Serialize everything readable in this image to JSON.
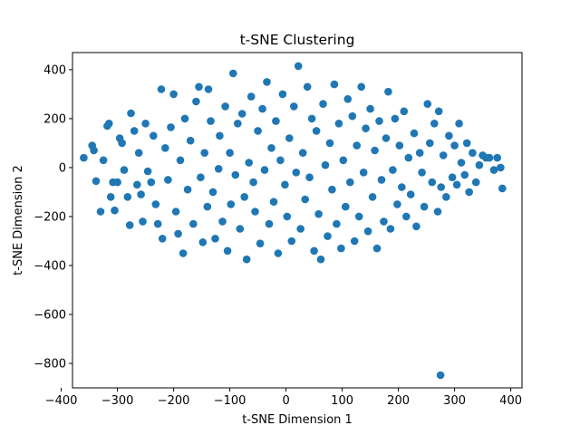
{
  "chart_data": {
    "type": "scatter",
    "title": "t-SNE Clustering",
    "xlabel": "t-SNE Dimension 1",
    "ylabel": "t-SNE Dimension 2",
    "xlim": [
      -380,
      420
    ],
    "ylim": [
      -900,
      470
    ],
    "xticks": [
      -400,
      -300,
      -200,
      -100,
      0,
      100,
      200,
      300,
      400
    ],
    "yticks": [
      -800,
      -600,
      -400,
      -200,
      0,
      200,
      400
    ],
    "grid": false,
    "legend": "none",
    "marker_color": "#1f77b4",
    "series": [
      {
        "points": [
          [
            -360,
            40
          ],
          [
            -345,
            90
          ],
          [
            -342,
            70
          ],
          [
            -338,
            -55
          ],
          [
            -330,
            -180
          ],
          [
            -325,
            30
          ],
          [
            -318,
            170
          ],
          [
            -315,
            180
          ],
          [
            -312,
            -120
          ],
          [
            -308,
            -60
          ],
          [
            -305,
            -175
          ],
          [
            -300,
            -60
          ],
          [
            -296,
            120
          ],
          [
            -292,
            100
          ],
          [
            -288,
            -10
          ],
          [
            -282,
            -120
          ],
          [
            -278,
            -235
          ],
          [
            -276,
            222
          ],
          [
            -270,
            150
          ],
          [
            -265,
            -70
          ],
          [
            -262,
            60
          ],
          [
            -258,
            -110
          ],
          [
            -255,
            -220
          ],
          [
            -250,
            180
          ],
          [
            -246,
            -15
          ],
          [
            -240,
            -60
          ],
          [
            -236,
            130
          ],
          [
            -232,
            -150
          ],
          [
            -228,
            -230
          ],
          [
            -222,
            320
          ],
          [
            -220,
            -290
          ],
          [
            -215,
            80
          ],
          [
            -210,
            -50
          ],
          [
            -205,
            165
          ],
          [
            -200,
            300
          ],
          [
            -196,
            -180
          ],
          [
            -192,
            -270
          ],
          [
            -188,
            30
          ],
          [
            -183,
            -350
          ],
          [
            -180,
            200
          ],
          [
            -175,
            -90
          ],
          [
            -170,
            110
          ],
          [
            -165,
            -230
          ],
          [
            -160,
            270
          ],
          [
            -155,
            330
          ],
          [
            -152,
            -40
          ],
          [
            -148,
            -305
          ],
          [
            -145,
            60
          ],
          [
            -140,
            -160
          ],
          [
            -138,
            320
          ],
          [
            -134,
            190
          ],
          [
            -130,
            -100
          ],
          [
            -126,
            -290
          ],
          [
            -120,
            -5
          ],
          [
            -118,
            130
          ],
          [
            -113,
            -220
          ],
          [
            -108,
            250
          ],
          [
            -104,
            -340
          ],
          [
            -100,
            60
          ],
          [
            -98,
            -150
          ],
          [
            -94,
            385
          ],
          [
            -90,
            -30
          ],
          [
            -86,
            180
          ],
          [
            -82,
            -250
          ],
          [
            -78,
            220
          ],
          [
            -74,
            -120
          ],
          [
            -70,
            -375
          ],
          [
            -66,
            20
          ],
          [
            -62,
            290
          ],
          [
            -58,
            -60
          ],
          [
            -55,
            -180
          ],
          [
            -50,
            150
          ],
          [
            -46,
            -310
          ],
          [
            -42,
            240
          ],
          [
            -38,
            -10
          ],
          [
            -34,
            350
          ],
          [
            -30,
            -230
          ],
          [
            -26,
            80
          ],
          [
            -22,
            -140
          ],
          [
            -18,
            190
          ],
          [
            -14,
            -350
          ],
          [
            -10,
            30
          ],
          [
            -6,
            300
          ],
          [
            -2,
            -70
          ],
          [
            2,
            -200
          ],
          [
            6,
            120
          ],
          [
            10,
            -300
          ],
          [
            14,
            250
          ],
          [
            18,
            -20
          ],
          [
            22,
            415
          ],
          [
            26,
            -250
          ],
          [
            30,
            60
          ],
          [
            34,
            -130
          ],
          [
            38,
            330
          ],
          [
            42,
            -40
          ],
          [
            46,
            200
          ],
          [
            50,
            -340
          ],
          [
            54,
            150
          ],
          [
            58,
            -190
          ],
          [
            62,
            -375
          ],
          [
            66,
            260
          ],
          [
            70,
            10
          ],
          [
            74,
            -280
          ],
          [
            78,
            100
          ],
          [
            82,
            -90
          ],
          [
            86,
            340
          ],
          [
            90,
            -230
          ],
          [
            94,
            180
          ],
          [
            98,
            -330
          ],
          [
            102,
            30
          ],
          [
            106,
            -160
          ],
          [
            110,
            280
          ],
          [
            114,
            -60
          ],
          [
            118,
            210
          ],
          [
            122,
            -300
          ],
          [
            126,
            90
          ],
          [
            130,
            -200
          ],
          [
            134,
            330
          ],
          [
            138,
            -20
          ],
          [
            142,
            160
          ],
          [
            146,
            -260
          ],
          [
            150,
            240
          ],
          [
            154,
            -120
          ],
          [
            158,
            70
          ],
          [
            162,
            -330
          ],
          [
            166,
            190
          ],
          [
            170,
            -50
          ],
          [
            174,
            -220
          ],
          [
            178,
            120
          ],
          [
            182,
            310
          ],
          [
            186,
            -250
          ],
          [
            190,
            -10
          ],
          [
            194,
            200
          ],
          [
            198,
            -150
          ],
          [
            202,
            90
          ],
          [
            206,
            -80
          ],
          [
            210,
            230
          ],
          [
            214,
            -200
          ],
          [
            218,
            40
          ],
          [
            222,
            -110
          ],
          [
            228,
            140
          ],
          [
            232,
            -240
          ],
          [
            238,
            60
          ],
          [
            242,
            -20
          ],
          [
            246,
            -160
          ],
          [
            252,
            260
          ],
          [
            256,
            100
          ],
          [
            260,
            -60
          ],
          [
            264,
            180
          ],
          [
            270,
            -180
          ],
          [
            272,
            230
          ],
          [
            276,
            -80
          ],
          [
            280,
            50
          ],
          [
            285,
            -120
          ],
          [
            290,
            130
          ],
          [
            296,
            -40
          ],
          [
            300,
            90
          ],
          [
            304,
            -70
          ],
          [
            308,
            180
          ],
          [
            312,
            20
          ],
          [
            318,
            -30
          ],
          [
            322,
            100
          ],
          [
            326,
            -100
          ],
          [
            332,
            60
          ],
          [
            338,
            -60
          ],
          [
            344,
            10
          ],
          [
            350,
            50
          ],
          [
            356,
            40
          ],
          [
            362,
            40
          ],
          [
            370,
            -10
          ],
          [
            376,
            40
          ],
          [
            382,
            0
          ],
          [
            385,
            -85
          ],
          [
            275,
            -848
          ]
        ]
      }
    ]
  }
}
